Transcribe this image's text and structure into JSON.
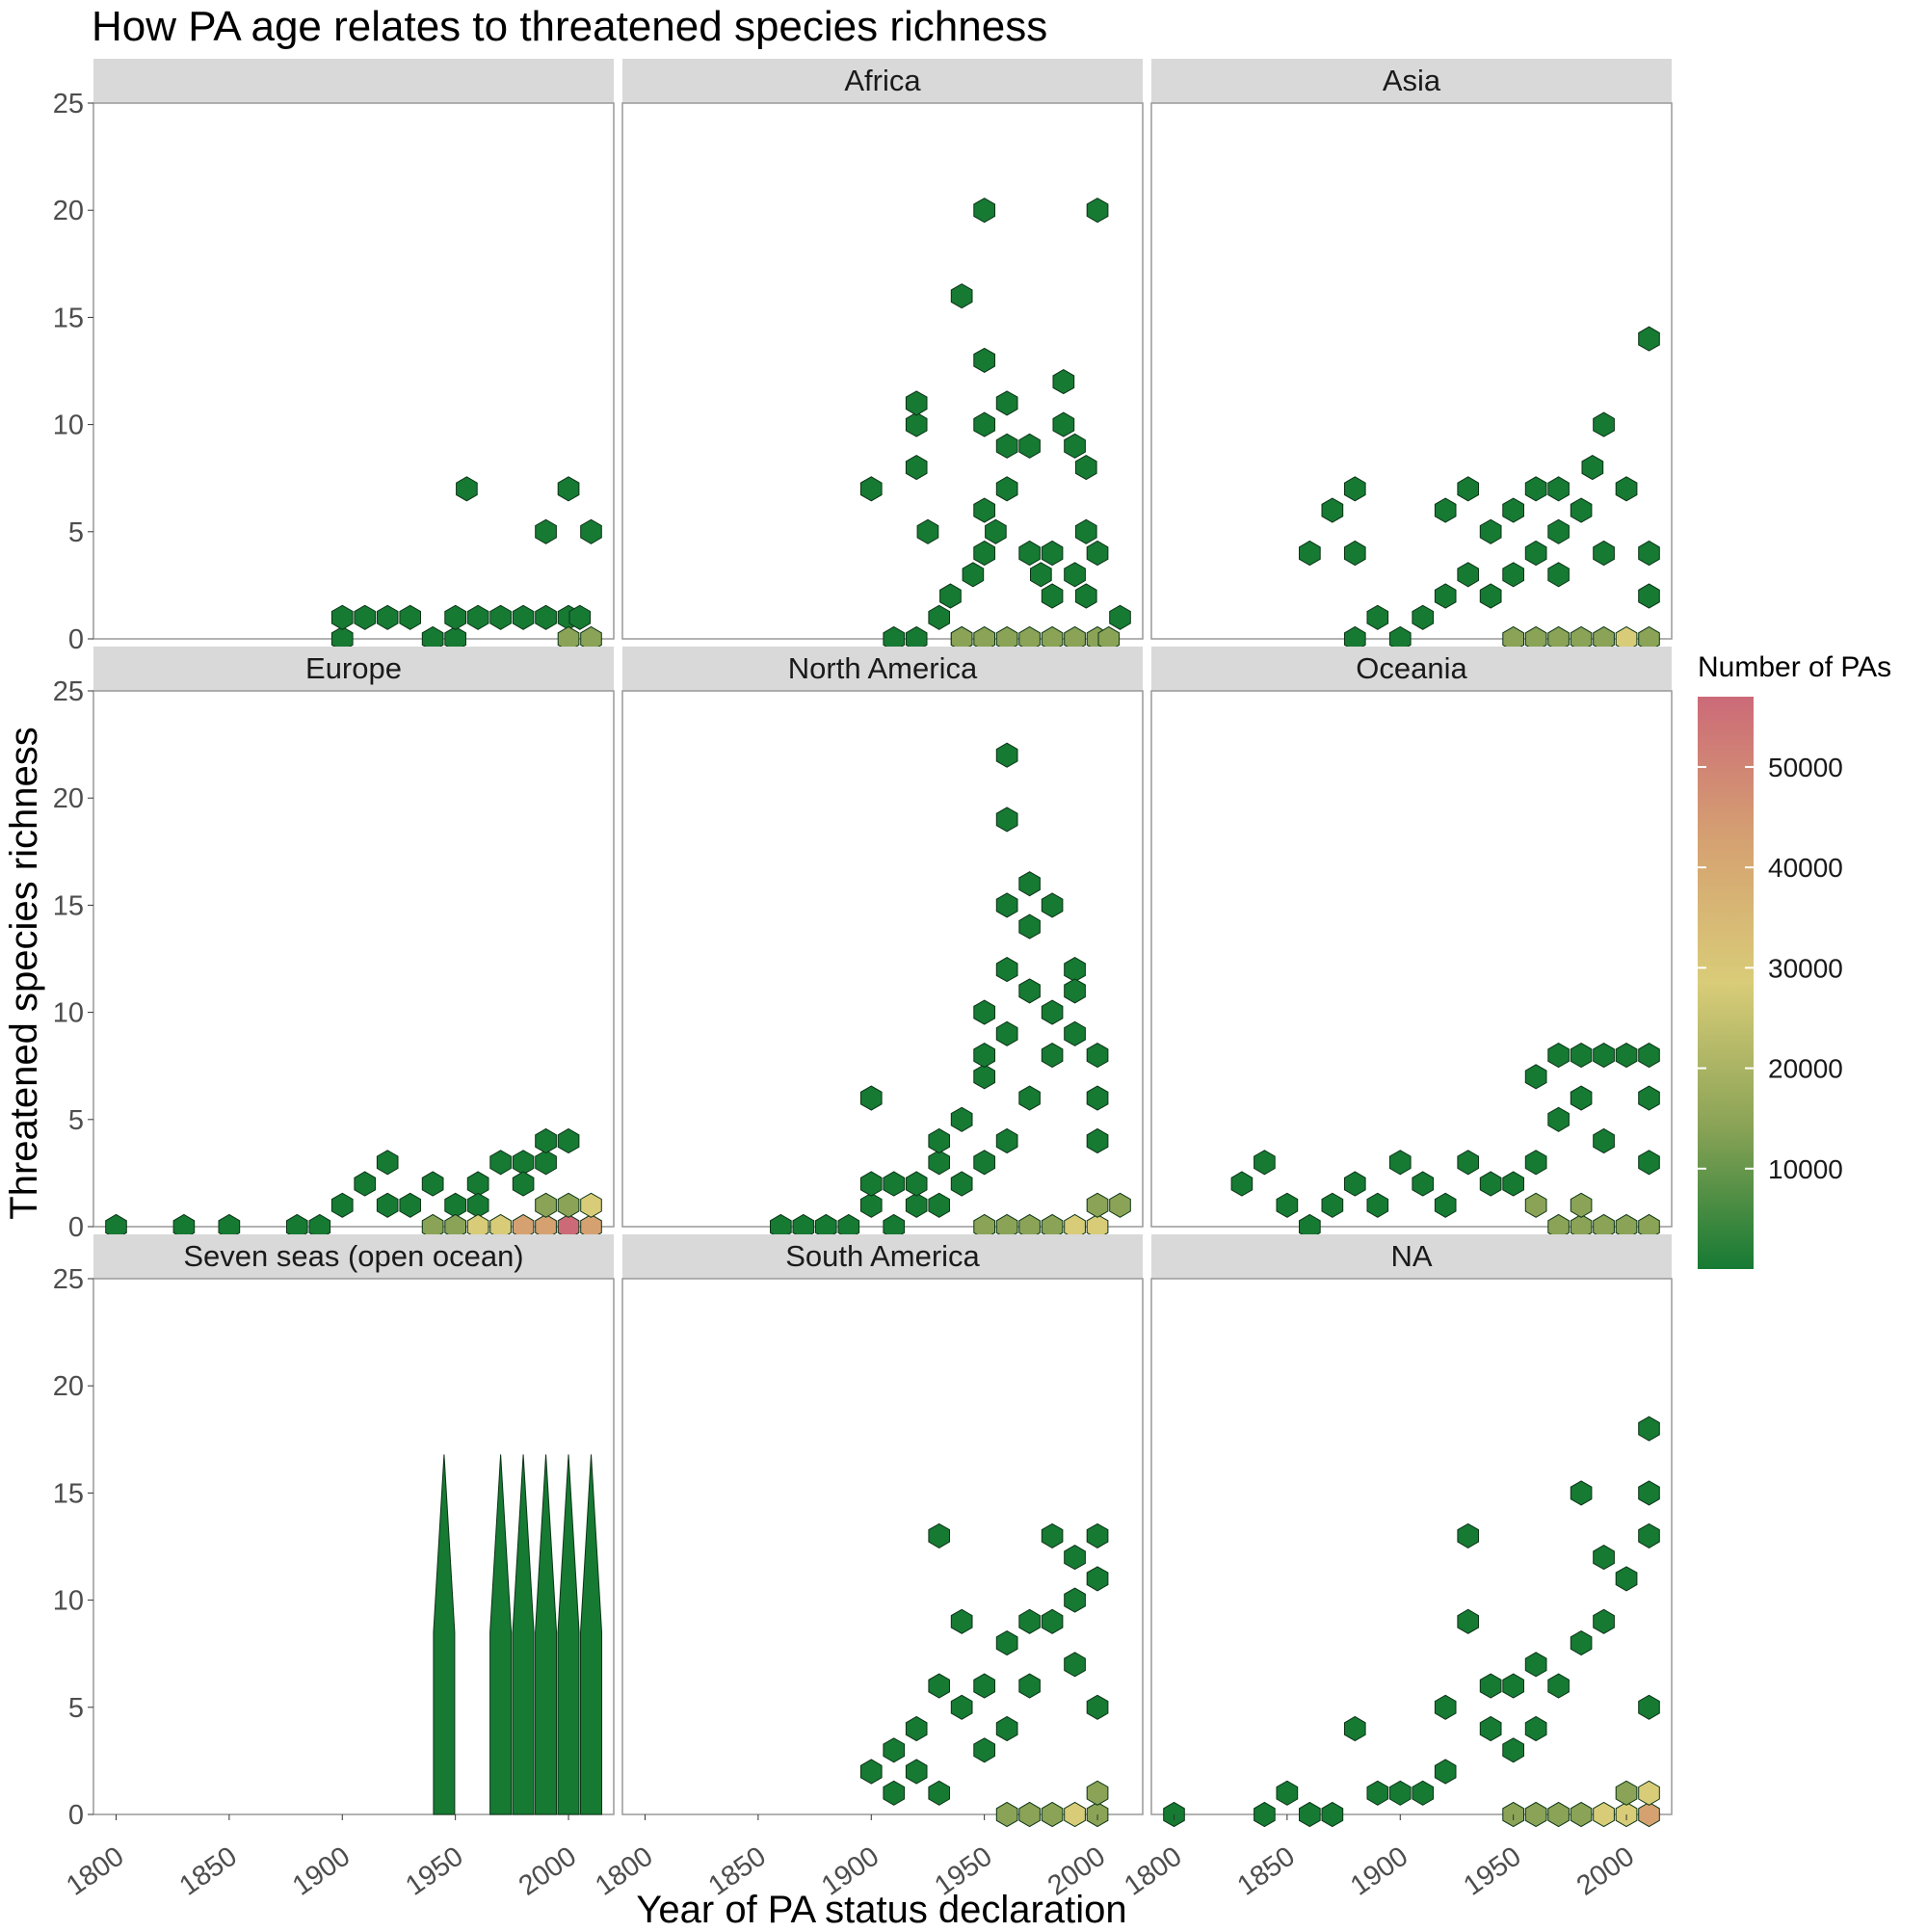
{
  "chart_data": {
    "type": "hexbin",
    "title": "How PA age relates to threatened species richness",
    "xlabel": "Year of PA status declaration",
    "ylabel": "Threatened species richness",
    "xlim": [
      1790,
      2020
    ],
    "ylim": [
      0,
      25
    ],
    "xticks": [
      1800,
      1850,
      1900,
      1950,
      2000
    ],
    "yticks": [
      0,
      5,
      10,
      15,
      20,
      25
    ],
    "grid": false,
    "legend": {
      "title": "Number of PAs",
      "placement": "right",
      "ticks": [
        10000,
        20000,
        30000,
        40000,
        50000
      ],
      "range": [
        1,
        57000
      ],
      "colors": [
        "#167a33",
        "#8aa356",
        "#d9cc78",
        "#d5a171",
        "#cc6a78"
      ]
    },
    "fill_colors": {
      "sparse": "#167a33",
      "light": "#8aa356",
      "mid": "#d9cc78",
      "high": "#d5a171",
      "max": "#cc6a78"
    },
    "panels": [
      {
        "label": "",
        "points": [
          [
            1900,
            0
          ],
          [
            1900,
            1
          ],
          [
            1910,
            1
          ],
          [
            1920,
            1
          ],
          [
            1930,
            1
          ],
          [
            1940,
            0
          ],
          [
            1950,
            0
          ],
          [
            1950,
            1
          ],
          [
            1960,
            1
          ],
          [
            1970,
            1
          ],
          [
            1980,
            1
          ],
          [
            1990,
            1
          ],
          [
            2000,
            1
          ],
          [
            2005,
            1
          ],
          [
            1955,
            7
          ],
          [
            2000,
            7
          ],
          [
            1990,
            5
          ],
          [
            2010,
            5
          ]
        ],
        "dense": [
          [
            2000,
            0,
            "light"
          ],
          [
            2010,
            0,
            "light"
          ]
        ]
      },
      {
        "label": "Africa",
        "points": [
          [
            1900,
            7
          ],
          [
            1910,
            0
          ],
          [
            1920,
            0
          ],
          [
            1920,
            8
          ],
          [
            1920,
            10
          ],
          [
            1920,
            11
          ],
          [
            1925,
            5
          ],
          [
            1930,
            1
          ],
          [
            1935,
            2
          ],
          [
            1940,
            0
          ],
          [
            1940,
            16
          ],
          [
            1945,
            3
          ],
          [
            1950,
            20
          ],
          [
            1950,
            13
          ],
          [
            1950,
            10
          ],
          [
            1950,
            4
          ],
          [
            1950,
            6
          ],
          [
            1955,
            5
          ],
          [
            1960,
            11
          ],
          [
            1960,
            9
          ],
          [
            1960,
            7
          ],
          [
            1970,
            4
          ],
          [
            1970,
            9
          ],
          [
            1975,
            3
          ],
          [
            1980,
            2
          ],
          [
            1980,
            4
          ],
          [
            1985,
            12
          ],
          [
            1985,
            10
          ],
          [
            1990,
            3
          ],
          [
            1990,
            9
          ],
          [
            1995,
            2
          ],
          [
            1995,
            5
          ],
          [
            1995,
            8
          ],
          [
            2000,
            20
          ],
          [
            2000,
            4
          ],
          [
            2010,
            1
          ]
        ],
        "dense": [
          [
            1940,
            0,
            "light"
          ],
          [
            1950,
            0,
            "light"
          ],
          [
            1960,
            0,
            "light"
          ],
          [
            1970,
            0,
            "light"
          ],
          [
            1980,
            0,
            "light"
          ],
          [
            1990,
            0,
            "light"
          ],
          [
            2000,
            0,
            "light"
          ],
          [
            2005,
            0,
            "light"
          ]
        ]
      },
      {
        "label": "Asia",
        "points": [
          [
            1860,
            4
          ],
          [
            1870,
            6
          ],
          [
            1880,
            7
          ],
          [
            1880,
            4
          ],
          [
            1880,
            0
          ],
          [
            1890,
            1
          ],
          [
            1900,
            0
          ],
          [
            1910,
            1
          ],
          [
            1920,
            2
          ],
          [
            1920,
            6
          ],
          [
            1930,
            3
          ],
          [
            1930,
            7
          ],
          [
            1940,
            2
          ],
          [
            1940,
            5
          ],
          [
            1950,
            6
          ],
          [
            1950,
            3
          ],
          [
            1960,
            4
          ],
          [
            1960,
            7
          ],
          [
            1970,
            3
          ],
          [
            1970,
            5
          ],
          [
            1970,
            7
          ],
          [
            1980,
            6
          ],
          [
            1985,
            8
          ],
          [
            1990,
            10
          ],
          [
            1990,
            4
          ],
          [
            2000,
            7
          ],
          [
            2010,
            14
          ],
          [
            2010,
            2
          ],
          [
            2010,
            4
          ]
        ],
        "dense": [
          [
            1950,
            0,
            "light"
          ],
          [
            1960,
            0,
            "light"
          ],
          [
            1970,
            0,
            "light"
          ],
          [
            1980,
            0,
            "light"
          ],
          [
            1990,
            0,
            "light"
          ],
          [
            2000,
            0,
            "mid"
          ],
          [
            2010,
            0,
            "light"
          ]
        ]
      },
      {
        "label": "Europe",
        "points": [
          [
            1800,
            0
          ],
          [
            1830,
            0
          ],
          [
            1850,
            0
          ],
          [
            1880,
            0
          ],
          [
            1890,
            0
          ],
          [
            1900,
            1
          ],
          [
            1910,
            2
          ],
          [
            1920,
            1
          ],
          [
            1920,
            3
          ],
          [
            1930,
            1
          ],
          [
            1940,
            2
          ],
          [
            1950,
            1
          ],
          [
            1960,
            2
          ],
          [
            1960,
            1
          ],
          [
            1970,
            3
          ],
          [
            1980,
            3
          ],
          [
            1980,
            2
          ],
          [
            1990,
            3
          ],
          [
            1990,
            4
          ],
          [
            2000,
            4
          ]
        ],
        "dense": [
          [
            1940,
            0,
            "light"
          ],
          [
            1950,
            0,
            "light"
          ],
          [
            1960,
            0,
            "mid"
          ],
          [
            1970,
            0,
            "mid"
          ],
          [
            1980,
            0,
            "high"
          ],
          [
            1990,
            0,
            "high"
          ],
          [
            2000,
            0,
            "max"
          ],
          [
            2010,
            0,
            "high"
          ],
          [
            2000,
            1,
            "light"
          ],
          [
            1990,
            1,
            "light"
          ],
          [
            2010,
            1,
            "mid"
          ]
        ]
      },
      {
        "label": "North America",
        "points": [
          [
            1860,
            0
          ],
          [
            1870,
            0
          ],
          [
            1880,
            0
          ],
          [
            1890,
            0
          ],
          [
            1900,
            1
          ],
          [
            1900,
            2
          ],
          [
            1900,
            6
          ],
          [
            1910,
            0
          ],
          [
            1910,
            2
          ],
          [
            1920,
            1
          ],
          [
            1920,
            2
          ],
          [
            1930,
            1
          ],
          [
            1930,
            3
          ],
          [
            1930,
            4
          ],
          [
            1940,
            2
          ],
          [
            1940,
            5
          ],
          [
            1950,
            3
          ],
          [
            1950,
            7
          ],
          [
            1950,
            10
          ],
          [
            1950,
            8
          ],
          [
            1960,
            4
          ],
          [
            1960,
            9
          ],
          [
            1960,
            22
          ],
          [
            1960,
            19
          ],
          [
            1960,
            15
          ],
          [
            1960,
            12
          ],
          [
            1970,
            11
          ],
          [
            1970,
            6
          ],
          [
            1970,
            14
          ],
          [
            1970,
            16
          ],
          [
            1980,
            10
          ],
          [
            1980,
            8
          ],
          [
            1980,
            15
          ],
          [
            1990,
            12
          ],
          [
            1990,
            11
          ],
          [
            1990,
            9
          ],
          [
            2000,
            6
          ],
          [
            2000,
            8
          ],
          [
            2000,
            4
          ]
        ],
        "dense": [
          [
            1950,
            0,
            "light"
          ],
          [
            1960,
            0,
            "light"
          ],
          [
            1970,
            0,
            "light"
          ],
          [
            1980,
            0,
            "light"
          ],
          [
            1990,
            0,
            "mid"
          ],
          [
            2000,
            0,
            "mid"
          ],
          [
            2000,
            1,
            "light"
          ],
          [
            2010,
            1,
            "light"
          ]
        ]
      },
      {
        "label": "Oceania",
        "points": [
          [
            1830,
            2
          ],
          [
            1840,
            3
          ],
          [
            1850,
            1
          ],
          [
            1860,
            0
          ],
          [
            1870,
            1
          ],
          [
            1880,
            2
          ],
          [
            1890,
            1
          ],
          [
            1900,
            3
          ],
          [
            1910,
            2
          ],
          [
            1920,
            1
          ],
          [
            1930,
            3
          ],
          [
            1940,
            2
          ],
          [
            1950,
            2
          ],
          [
            1960,
            3
          ],
          [
            1960,
            7
          ],
          [
            1970,
            8
          ],
          [
            1970,
            5
          ],
          [
            1980,
            8
          ],
          [
            1980,
            6
          ],
          [
            1990,
            8
          ],
          [
            1990,
            4
          ],
          [
            2000,
            8
          ],
          [
            2010,
            8
          ],
          [
            2010,
            6
          ],
          [
            2010,
            3
          ]
        ],
        "dense": [
          [
            1960,
            1,
            "light"
          ],
          [
            1970,
            0,
            "light"
          ],
          [
            1980,
            0,
            "light"
          ],
          [
            1980,
            1,
            "light"
          ],
          [
            1990,
            0,
            "light"
          ],
          [
            2000,
            0,
            "light"
          ],
          [
            2010,
            0,
            "light"
          ]
        ]
      },
      {
        "label": "Seven seas (open ocean)",
        "points": [],
        "dense": [],
        "spikes": [
          1945,
          1970,
          1980,
          1990,
          2000,
          2010
        ]
      },
      {
        "label": "South America",
        "points": [
          [
            1900,
            2
          ],
          [
            1910,
            3
          ],
          [
            1910,
            1
          ],
          [
            1920,
            4
          ],
          [
            1920,
            2
          ],
          [
            1930,
            13
          ],
          [
            1930,
            6
          ],
          [
            1930,
            1
          ],
          [
            1940,
            9
          ],
          [
            1940,
            5
          ],
          [
            1950,
            6
          ],
          [
            1950,
            3
          ],
          [
            1960,
            8
          ],
          [
            1960,
            4
          ],
          [
            1970,
            9
          ],
          [
            1970,
            6
          ],
          [
            1980,
            13
          ],
          [
            1980,
            9
          ],
          [
            1990,
            12
          ],
          [
            1990,
            10
          ],
          [
            1990,
            7
          ],
          [
            2000,
            13
          ],
          [
            2000,
            11
          ],
          [
            2000,
            5
          ]
        ],
        "dense": [
          [
            1960,
            0,
            "light"
          ],
          [
            1970,
            0,
            "light"
          ],
          [
            1980,
            0,
            "light"
          ],
          [
            1990,
            0,
            "mid"
          ],
          [
            2000,
            0,
            "light"
          ],
          [
            2000,
            1,
            "light"
          ]
        ]
      },
      {
        "label": "NA",
        "points": [
          [
            1800,
            0
          ],
          [
            1840,
            0
          ],
          [
            1850,
            1
          ],
          [
            1860,
            0
          ],
          [
            1870,
            0
          ],
          [
            1880,
            4
          ],
          [
            1890,
            1
          ],
          [
            1900,
            1
          ],
          [
            1910,
            1
          ],
          [
            1920,
            5
          ],
          [
            1920,
            2
          ],
          [
            1930,
            13
          ],
          [
            1930,
            9
          ],
          [
            1940,
            6
          ],
          [
            1940,
            4
          ],
          [
            1950,
            6
          ],
          [
            1950,
            3
          ],
          [
            1960,
            7
          ],
          [
            1960,
            4
          ],
          [
            1970,
            6
          ],
          [
            1980,
            15
          ],
          [
            1980,
            8
          ],
          [
            1990,
            12
          ],
          [
            1990,
            9
          ],
          [
            2000,
            11
          ],
          [
            2010,
            18
          ],
          [
            2010,
            15
          ],
          [
            2010,
            13
          ],
          [
            2010,
            5
          ]
        ],
        "dense": [
          [
            1950,
            0,
            "light"
          ],
          [
            1960,
            0,
            "light"
          ],
          [
            1970,
            0,
            "light"
          ],
          [
            1980,
            0,
            "light"
          ],
          [
            1990,
            0,
            "mid"
          ],
          [
            2000,
            0,
            "mid"
          ],
          [
            2010,
            0,
            "high"
          ],
          [
            2000,
            1,
            "light"
          ],
          [
            2010,
            1,
            "mid"
          ]
        ]
      }
    ]
  }
}
